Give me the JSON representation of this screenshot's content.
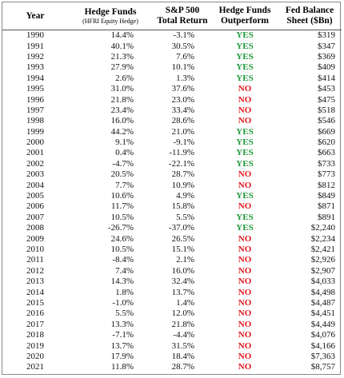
{
  "table": {
    "headers": [
      [
        "Year"
      ],
      [
        "Hedge Funds",
        "(HFRI Equity Hedge)"
      ],
      [
        "S&P 500",
        "Total Return"
      ],
      [
        "Hedge Funds",
        "Outperform"
      ],
      [
        "Fed Balance",
        "Sheet ($Bn)"
      ]
    ],
    "outperform_colors": {
      "YES": "#1f9a3a",
      "NO": "#e3141b"
    },
    "rows": [
      [
        "1990",
        "14.4%",
        "-3.1%",
        "YES",
        "$319"
      ],
      [
        "1991",
        "40.1%",
        "30.5%",
        "YES",
        "$347"
      ],
      [
        "1992",
        "21.3%",
        "7.6%",
        "YES",
        "$369"
      ],
      [
        "1993",
        "27.9%",
        "10.1%",
        "YES",
        "$409"
      ],
      [
        "1994",
        "2.6%",
        "1.3%",
        "YES",
        "$414"
      ],
      [
        "1995",
        "31.0%",
        "37.6%",
        "NO",
        "$453"
      ],
      [
        "1996",
        "21.8%",
        "23.0%",
        "NO",
        "$475"
      ],
      [
        "1997",
        "23.4%",
        "33.4%",
        "NO",
        "$518"
      ],
      [
        "1998",
        "16.0%",
        "28.6%",
        "NO",
        "$546"
      ],
      [
        "1999",
        "44.2%",
        "21.0%",
        "YES",
        "$669"
      ],
      [
        "2000",
        "9.1%",
        "-9.1%",
        "YES",
        "$620"
      ],
      [
        "2001",
        "0.4%",
        "-11.9%",
        "YES",
        "$663"
      ],
      [
        "2002",
        "-4.7%",
        "-22.1%",
        "YES",
        "$733"
      ],
      [
        "2003",
        "20.5%",
        "28.7%",
        "NO",
        "$773"
      ],
      [
        "2004",
        "7.7%",
        "10.9%",
        "NO",
        "$812"
      ],
      [
        "2005",
        "10.6%",
        "4.9%",
        "YES",
        "$849"
      ],
      [
        "2006",
        "11.7%",
        "15.8%",
        "NO",
        "$871"
      ],
      [
        "2007",
        "10.5%",
        "5.5%",
        "YES",
        "$891"
      ],
      [
        "2008",
        "-26.7%",
        "-37.0%",
        "YES",
        "$2,240"
      ],
      [
        "2009",
        "24.6%",
        "26.5%",
        "NO",
        "$2,234"
      ],
      [
        "2010",
        "10.5%",
        "15.1%",
        "NO",
        "$2,421"
      ],
      [
        "2011",
        "-8.4%",
        "2.1%",
        "NO",
        "$2,926"
      ],
      [
        "2012",
        "7.4%",
        "16.0%",
        "NO",
        "$2,907"
      ],
      [
        "2013",
        "14.3%",
        "32.4%",
        "NO",
        "$4,033"
      ],
      [
        "2014",
        "1.8%",
        "13.7%",
        "NO",
        "$4,498"
      ],
      [
        "2015",
        "-1.0%",
        "1.4%",
        "NO",
        "$4,487"
      ],
      [
        "2016",
        "5.5%",
        "12.0%",
        "NO",
        "$4,451"
      ],
      [
        "2017",
        "13.3%",
        "21.8%",
        "NO",
        "$4,449"
      ],
      [
        "2018",
        "-7.1%",
        "-4.4%",
        "NO",
        "$4,076"
      ],
      [
        "2019",
        "13.7%",
        "31.5%",
        "NO",
        "$4,166"
      ],
      [
        "2020",
        "17.9%",
        "18.4%",
        "NO",
        "$7,363"
      ],
      [
        "2021",
        "11.8%",
        "28.7%",
        "NO",
        "$8,757"
      ]
    ]
  }
}
